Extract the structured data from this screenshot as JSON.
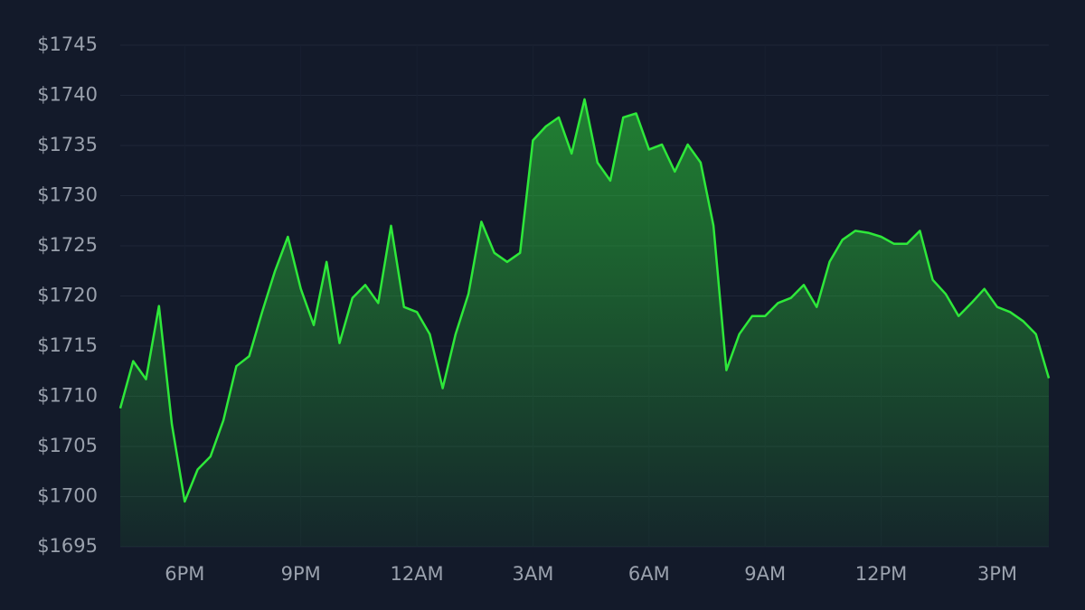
{
  "chart_data": {
    "type": "area",
    "categories": [
      null,
      null,
      null,
      null,
      null,
      "6PM",
      null,
      null,
      null,
      null,
      null,
      null,
      null,
      null,
      "9PM",
      null,
      null,
      null,
      null,
      null,
      null,
      null,
      null,
      "12AM",
      null,
      null,
      null,
      null,
      null,
      null,
      null,
      null,
      "3AM",
      null,
      null,
      null,
      null,
      null,
      null,
      null,
      null,
      "6AM",
      null,
      null,
      null,
      null,
      null,
      null,
      null,
      null,
      "9AM",
      null,
      null,
      null,
      null,
      null,
      null,
      null,
      null,
      "12PM",
      null,
      null,
      null,
      null,
      null,
      null,
      null,
      null,
      "3PM",
      null,
      null,
      null,
      null
    ],
    "values": [
      1708.8,
      1713.5,
      1711.7,
      1719,
      1707.2,
      1699.5,
      1702.7,
      1704,
      1707.6,
      1713,
      1714,
      1718.4,
      1722.5,
      1725.9,
      1720.7,
      1717.1,
      1723.4,
      1715.3,
      1719.8,
      1721.1,
      1719.3,
      1727,
      1718.9,
      1718.4,
      1716.2,
      1710.8,
      1716.2,
      1720.2,
      1727.4,
      1724.3,
      1723.4,
      1724.3,
      1735.5,
      1736.9,
      1737.8,
      1734.2,
      1739.6,
      1733.3,
      1731.5,
      1737.8,
      1738.2,
      1734.6,
      1735.1,
      1732.4,
      1735.1,
      1733.3,
      1727,
      1712.6,
      1716.2,
      1718,
      1718,
      1719.3,
      1719.8,
      1721.1,
      1718.9,
      1723.4,
      1725.6,
      1726.5,
      1726.3,
      1725.9,
      1725.2,
      1725.2,
      1726.5,
      1721.6,
      1720.2,
      1718,
      1719.3,
      1720.7,
      1718.9,
      1718.4,
      1717.5,
      1716.2,
      1711.8
    ],
    "color": "#2ee83a",
    "ylim": [
      1695,
      1745
    ],
    "yticks": [
      {
        "value": 1695,
        "label": "$1695"
      },
      {
        "value": 1700,
        "label": "$1700"
      },
      {
        "value": 1705,
        "label": "$1705"
      },
      {
        "value": 1710,
        "label": "$1710"
      },
      {
        "value": 1715,
        "label": "$1715"
      },
      {
        "value": 1720,
        "label": "$1720"
      },
      {
        "value": 1725,
        "label": "$1725"
      },
      {
        "value": 1730,
        "label": "$1730"
      },
      {
        "value": 1735,
        "label": "$1735"
      },
      {
        "value": 1740,
        "label": "$1740"
      },
      {
        "value": 1745,
        "label": "$1745"
      }
    ],
    "grid": true
  }
}
